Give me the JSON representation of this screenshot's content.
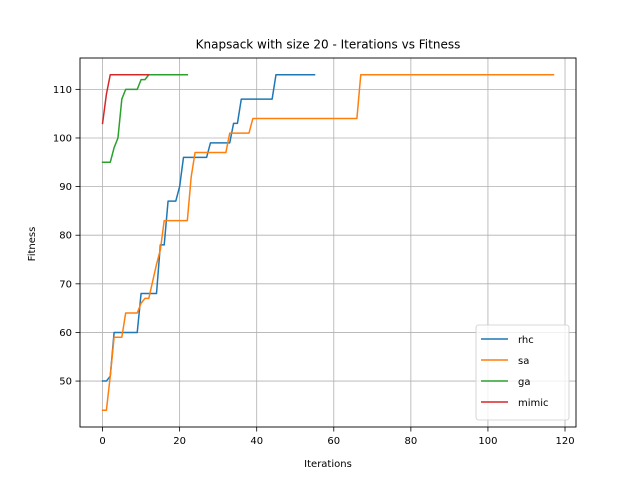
{
  "chart_data": {
    "type": "line",
    "title": "Knapsack with size 20 - Iterations vs Fitness",
    "xlabel": "Iterations",
    "ylabel": "Fitness",
    "xlim": [
      -5.85,
      122.85
    ],
    "ylim": [
      40.55,
      116.45
    ],
    "xticks": [
      0,
      20,
      40,
      60,
      80,
      100,
      120
    ],
    "yticks": [
      50,
      60,
      70,
      80,
      90,
      100,
      110
    ],
    "grid": true,
    "legend_position": "lower-right",
    "series": [
      {
        "name": "rhc",
        "color": "#1f77b4",
        "x": [
          0,
          1,
          2,
          3,
          4,
          5,
          6,
          7,
          8,
          9,
          10,
          11,
          12,
          13,
          14,
          15,
          16,
          17,
          18,
          19,
          20,
          21,
          22,
          23,
          24,
          25,
          26,
          27,
          28,
          29,
          30,
          31,
          32,
          33,
          34,
          35,
          36,
          37,
          38,
          39,
          40,
          41,
          42,
          43,
          44,
          45,
          46,
          47,
          48,
          49,
          50,
          51,
          52,
          53,
          54,
          55
        ],
        "y": [
          50,
          50,
          51,
          60,
          60,
          60,
          60,
          60,
          60,
          60,
          68,
          68,
          68,
          68,
          68,
          78,
          78,
          87,
          87,
          87,
          90,
          96,
          96,
          96,
          96,
          96,
          96,
          96,
          99,
          99,
          99,
          99,
          99,
          99,
          103,
          103,
          108,
          108,
          108,
          108,
          108,
          108,
          108,
          108,
          108,
          113,
          113,
          113,
          113,
          113,
          113,
          113,
          113,
          113,
          113,
          113
        ]
      },
      {
        "name": "sa",
        "color": "#ff7f0e",
        "x": [
          0,
          1,
          2,
          3,
          5,
          6,
          9,
          10,
          11,
          12,
          14,
          15,
          16,
          17,
          22,
          23,
          24,
          32,
          33,
          38,
          39,
          40,
          66,
          67,
          117
        ],
        "y": [
          44,
          44,
          51,
          59,
          59,
          64,
          64,
          66,
          67,
          67,
          74,
          77,
          83,
          83,
          83,
          92,
          97,
          97,
          101,
          101,
          104,
          104,
          104,
          113,
          113
        ]
      },
      {
        "name": "ga",
        "color": "#2ca02c",
        "x": [
          0,
          1,
          2,
          3,
          4,
          5,
          6,
          7,
          8,
          9,
          10,
          11,
          12,
          13,
          14,
          15,
          16,
          17,
          18,
          19,
          20,
          21,
          22
        ],
        "y": [
          95,
          95,
          95,
          98,
          100,
          108,
          110,
          110,
          110,
          110,
          112,
          112,
          113,
          113,
          113,
          113,
          113,
          113,
          113,
          113,
          113,
          113,
          113
        ]
      },
      {
        "name": "mimic",
        "color": "#d62728",
        "x": [
          0,
          1,
          2,
          3,
          4,
          5,
          6,
          7,
          8,
          9,
          10,
          11,
          12
        ],
        "y": [
          103,
          109,
          113,
          113,
          113,
          113,
          113,
          113,
          113,
          113,
          113,
          113,
          113
        ]
      }
    ]
  }
}
